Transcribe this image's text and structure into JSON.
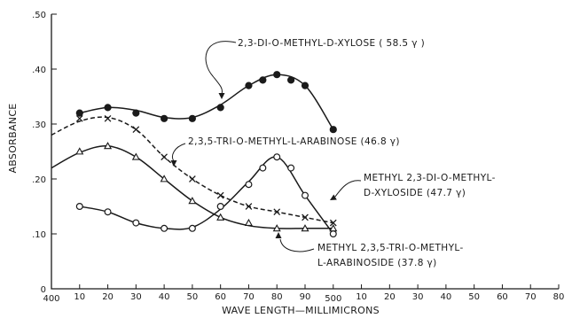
{
  "chart_data": {
    "type": "line",
    "xlabel": "WAVE LENGTH—MILLIMICRONS",
    "ylabel": "ABSORBANCE",
    "xlim": [
      400,
      580
    ],
    "ylim": [
      0,
      0.5
    ],
    "grid": false,
    "x_ticks": [
      {
        "value": 400,
        "label": "400"
      },
      {
        "value": 410,
        "label": "10"
      },
      {
        "value": 420,
        "label": "20"
      },
      {
        "value": 430,
        "label": "30"
      },
      {
        "value": 440,
        "label": "40"
      },
      {
        "value": 450,
        "label": "50"
      },
      {
        "value": 460,
        "label": "60"
      },
      {
        "value": 470,
        "label": "70"
      },
      {
        "value": 480,
        "label": "80"
      },
      {
        "value": 490,
        "label": "90"
      },
      {
        "value": 500,
        "label": "500"
      },
      {
        "value": 510,
        "label": "10"
      },
      {
        "value": 520,
        "label": "20"
      },
      {
        "value": 530,
        "label": "30"
      },
      {
        "value": 540,
        "label": "40"
      },
      {
        "value": 550,
        "label": "50"
      },
      {
        "value": 560,
        "label": "60"
      },
      {
        "value": 570,
        "label": "70"
      },
      {
        "value": 580,
        "label": "80"
      }
    ],
    "y_ticks": [
      {
        "value": 0,
        "label": "0"
      },
      {
        "value": 0.1,
        "label": ".10"
      },
      {
        "value": 0.2,
        "label": ".20"
      },
      {
        "value": 0.3,
        "label": ".30"
      },
      {
        "value": 0.4,
        "label": ".40"
      },
      {
        "value": 0.5,
        "label": ".50"
      }
    ],
    "series": [
      {
        "name": "2,3-DI-O-METHYL-D-XYLOSE (58.5 γ)",
        "marker": "filled-circle",
        "line": "solid",
        "x": [
          410,
          420,
          430,
          440,
          450,
          460,
          470,
          475,
          480,
          485,
          490,
          500
        ],
        "y": [
          0.32,
          0.33,
          0.32,
          0.31,
          0.31,
          0.33,
          0.37,
          0.38,
          0.39,
          0.38,
          0.37,
          0.29
        ],
        "curve_x": [
          410,
          420,
          430,
          440,
          450,
          460,
          470,
          480,
          490,
          500
        ],
        "curve_y": [
          0.32,
          0.33,
          0.325,
          0.312,
          0.312,
          0.335,
          0.37,
          0.39,
          0.37,
          0.29
        ]
      },
      {
        "name": "2,3,5-TRI-O-METHYL-L-ARABINOSE (46.8 γ)",
        "marker": "x",
        "line": "dashed",
        "x": [
          410,
          420,
          430,
          440,
          450,
          460,
          470,
          480,
          490,
          500
        ],
        "y": [
          0.31,
          0.31,
          0.29,
          0.24,
          0.2,
          0.17,
          0.15,
          0.14,
          0.13,
          0.12
        ],
        "curve_x": [
          400,
          410,
          420,
          430,
          440,
          450,
          460,
          470,
          480,
          490,
          500
        ],
        "curve_y": [
          0.28,
          0.305,
          0.312,
          0.29,
          0.24,
          0.2,
          0.17,
          0.15,
          0.14,
          0.13,
          0.12
        ]
      },
      {
        "name": "METHYL 2,3-DI-O-METHYL-D-XYLOSIDE (47.7 γ)",
        "marker": "open-circle",
        "line": "solid",
        "x": [
          410,
          420,
          430,
          440,
          450,
          460,
          470,
          475,
          480,
          485,
          490,
          500
        ],
        "y": [
          0.15,
          0.14,
          0.12,
          0.11,
          0.11,
          0.15,
          0.19,
          0.22,
          0.24,
          0.22,
          0.17,
          0.1
        ],
        "curve_x": [
          410,
          420,
          430,
          440,
          450,
          460,
          470,
          480,
          490,
          500
        ],
        "curve_y": [
          0.15,
          0.14,
          0.12,
          0.11,
          0.112,
          0.145,
          0.195,
          0.24,
          0.17,
          0.1
        ]
      },
      {
        "name": "METHYL 2,3,5-TRI-O-METHYL-L-ARABINOSIDE (37.8 γ)",
        "marker": "open-triangle",
        "line": "solid",
        "x": [
          410,
          420,
          430,
          440,
          450,
          460,
          470,
          480,
          490,
          500
        ],
        "y": [
          0.25,
          0.26,
          0.24,
          0.2,
          0.16,
          0.13,
          0.12,
          0.11,
          0.11,
          0.11
        ],
        "curve_x": [
          400,
          410,
          420,
          430,
          440,
          450,
          460,
          470,
          480,
          490,
          500
        ],
        "curve_y": [
          0.22,
          0.248,
          0.26,
          0.24,
          0.2,
          0.16,
          0.13,
          0.115,
          0.11,
          0.11,
          0.11
        ]
      }
    ],
    "annotations": [
      {
        "series": 0,
        "lines": [
          "2,3-DI-O-METHYL-D-XYLOSE ( 58.5 γ )"
        ]
      },
      {
        "series": 1,
        "lines": [
          "2,3,5-TRI-O-METHYL-L-ARABINOSE (46.8 γ)"
        ]
      },
      {
        "series": 2,
        "lines": [
          "METHYL 2,3-DI-O-METHYL-",
          "D-XYLOSIDE (47.7 γ)"
        ]
      },
      {
        "series": 3,
        "lines": [
          "METHYL 2,3,5-TRI-O-METHYL-",
          "L-ARABINOSIDE (37.8 γ)"
        ]
      }
    ]
  }
}
